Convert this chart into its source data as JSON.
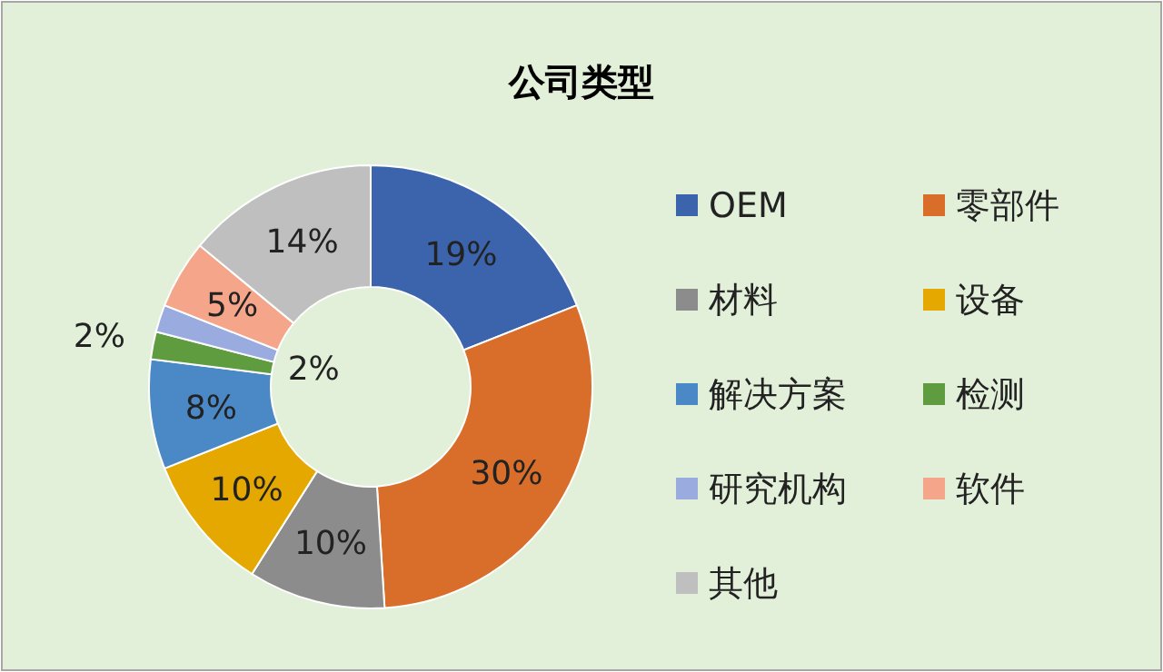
{
  "chart_data": {
    "type": "donut",
    "title": "公司类型",
    "categories": [
      "OEM",
      "零部件",
      "材料",
      "设备",
      "解决方案",
      "检测",
      "研究机构",
      "软件",
      "其他"
    ],
    "values": [
      19,
      30,
      10,
      10,
      8,
      2,
      2,
      5,
      14
    ],
    "value_labels": [
      "19%",
      "30%",
      "10%",
      "10%",
      "8%",
      "2%",
      "2%",
      "5%",
      "14%"
    ],
    "colors": [
      "#3b64ad",
      "#d86e2a",
      "#8c8c8c",
      "#e5a800",
      "#4a89c5",
      "#5e9c3f",
      "#9aabe0",
      "#f4a58a",
      "#bfbfbf"
    ],
    "legend": "right"
  }
}
